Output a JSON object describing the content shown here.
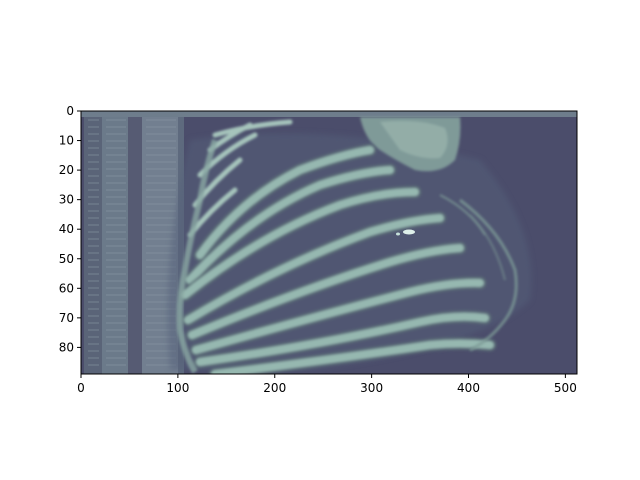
{
  "image": {
    "description_colormap": "bone",
    "background_color": "#4b4d6b",
    "bone_color": "#8fb3ac",
    "highlight_color": "#c6e1da"
  },
  "axes": {
    "x": {
      "min": 0,
      "max": 512,
      "ticks": [
        0,
        100,
        200,
        300,
        400,
        500
      ],
      "labels": [
        "0",
        "100",
        "200",
        "300",
        "400",
        "500"
      ]
    },
    "y": {
      "min": 0,
      "max": 89,
      "ticks": [
        0,
        10,
        20,
        30,
        40,
        50,
        60,
        70,
        80
      ],
      "labels": [
        "0",
        "10",
        "20",
        "30",
        "40",
        "50",
        "60",
        "70",
        "80"
      ]
    }
  }
}
